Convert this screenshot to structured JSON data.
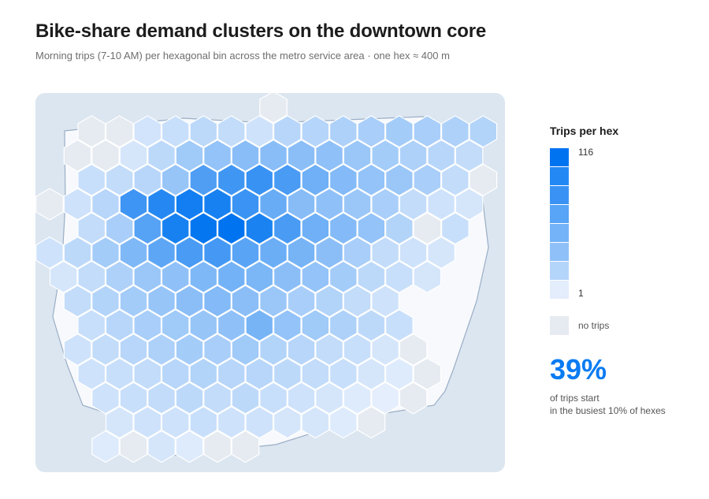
{
  "chart_data": {
    "type": "heatmap",
    "title": "Bike-share demand clusters on the downtown core",
    "subtitle": "Morning trips (7-10 AM) per hexagonal bin across the metro service area · one hex ≈ 400 m",
    "legend": {
      "title": "Trips per hex",
      "max": "116",
      "min": "1",
      "no_data_label": "no trips",
      "ramp_colors": [
        "#0074f0",
        "#2488f4",
        "#3a93f4",
        "#58a4f6",
        "#74b3f7",
        "#8fc1f8",
        "#b4d5fa",
        "#e3edfb"
      ],
      "no_data_color": "#e6ebf1"
    },
    "stat": {
      "value": "39%",
      "note_line1": "of trips start",
      "note_line2": "in the busiest 10% of hexes"
    },
    "bins": [
      {
        "row": 0,
        "cells": [
          null,
          null,
          null,
          null,
          null,
          null,
          null,
          null,
          0,
          null,
          null,
          null,
          null,
          null,
          null,
          null,
          null
        ]
      },
      {
        "row": 1,
        "cells": [
          null,
          0,
          0,
          5,
          8,
          12,
          10,
          6,
          14,
          15,
          18,
          20,
          22,
          20,
          18,
          16,
          null
        ]
      },
      {
        "row": 2,
        "cells": [
          null,
          0,
          0,
          4,
          12,
          24,
          30,
          35,
          35,
          34,
          32,
          26,
          22,
          18,
          14,
          10,
          null
        ]
      },
      {
        "row": 3,
        "cells": [
          null,
          8,
          10,
          14,
          28,
          66,
          75,
          80,
          70,
          48,
          38,
          30,
          26,
          20,
          10,
          0,
          null
        ]
      },
      {
        "row": 4,
        "cells": [
          0,
          6,
          14,
          76,
          92,
          104,
          100,
          78,
          52,
          36,
          32,
          26,
          20,
          10,
          6,
          4,
          null
        ]
      },
      {
        "row": 5,
        "cells": [
          null,
          10,
          20,
          62,
          100,
          114,
          116,
          98,
          70,
          48,
          38,
          30,
          16,
          0,
          8,
          null,
          null
        ]
      },
      {
        "row": 6,
        "cells": [
          6,
          12,
          22,
          40,
          58,
          70,
          72,
          60,
          50,
          44,
          34,
          20,
          10,
          6,
          4,
          null,
          null
        ]
      },
      {
        "row": 7,
        "cells": [
          4,
          10,
          18,
          26,
          32,
          40,
          46,
          42,
          34,
          30,
          22,
          12,
          8,
          4,
          null,
          null,
          null
        ]
      },
      {
        "row": 8,
        "cells": [
          null,
          10,
          16,
          22,
          28,
          34,
          38,
          34,
          26,
          20,
          16,
          10,
          6,
          null,
          null,
          null,
          null
        ]
      },
      {
        "row": 9,
        "cells": [
          null,
          8,
          14,
          20,
          24,
          28,
          32,
          44,
          30,
          24,
          18,
          12,
          8,
          null,
          null,
          null,
          null
        ]
      },
      {
        "row": 10,
        "cells": [
          null,
          6,
          10,
          14,
          18,
          22,
          20,
          24,
          16,
          14,
          10,
          8,
          4,
          0,
          null,
          null,
          null
        ]
      },
      {
        "row": 11,
        "cells": [
          null,
          6,
          8,
          10,
          14,
          16,
          14,
          14,
          12,
          10,
          8,
          4,
          2,
          0,
          null,
          null,
          null
        ]
      },
      {
        "row": 12,
        "cells": [
          null,
          null,
          6,
          8,
          10,
          12,
          10,
          12,
          8,
          6,
          4,
          2,
          1,
          0,
          null,
          null,
          null
        ]
      },
      {
        "row": 13,
        "cells": [
          null,
          null,
          4,
          6,
          6,
          8,
          6,
          6,
          4,
          4,
          2,
          0,
          null,
          null,
          null,
          null,
          null
        ]
      },
      {
        "row": 14,
        "cells": [
          null,
          null,
          2,
          0,
          4,
          2,
          0,
          0,
          null,
          null,
          null,
          null,
          null,
          null,
          null,
          null,
          null
        ]
      }
    ],
    "value_range": [
      1,
      116
    ],
    "grid": false
  }
}
